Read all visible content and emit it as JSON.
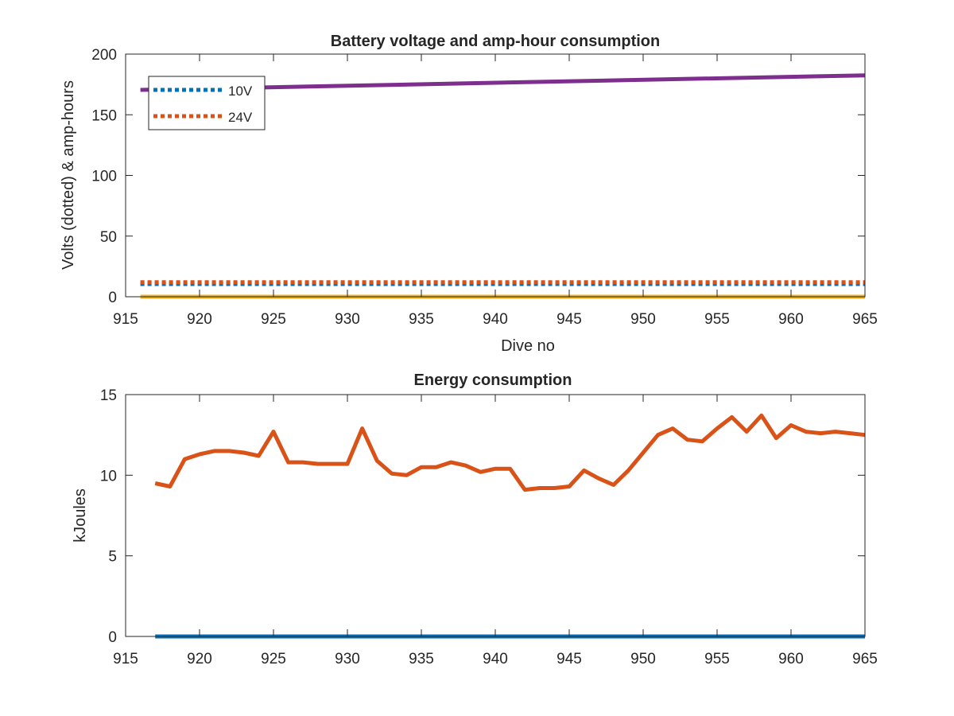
{
  "chart_data": [
    {
      "type": "line",
      "title": "Battery voltage and amp-hour consumption",
      "xlabel": "Dive no",
      "ylabel": "Volts (dotted) & amp-hours",
      "xlim": [
        915,
        965
      ],
      "ylim": [
        0,
        200
      ],
      "xticks": [
        "915",
        "920",
        "925",
        "930",
        "935",
        "940",
        "945",
        "950",
        "955",
        "960",
        "965"
      ],
      "yticks": [
        "0",
        "50",
        "100",
        "150",
        "200"
      ],
      "legend_position": "top-left",
      "grid": false,
      "series": [
        {
          "name": "10V",
          "style": "dotted",
          "color": "#0072BD",
          "x": [
            916,
            965
          ],
          "y": [
            10.5,
            10.5
          ]
        },
        {
          "name": "24V",
          "style": "dotted",
          "color": "#D95319",
          "x": [
            916,
            965
          ],
          "y": [
            12,
            12
          ]
        },
        {
          "name": "",
          "style": "solid",
          "color": "#EDB120",
          "x": [
            916,
            965
          ],
          "y": [
            0,
            0
          ]
        },
        {
          "name": "",
          "style": "solid",
          "color": "#7E2F8E",
          "x": [
            916,
            965
          ],
          "y": [
            170.5,
            182.5
          ]
        }
      ]
    },
    {
      "type": "line",
      "title": "Energy consumption",
      "xlabel": "",
      "ylabel": "kJoules",
      "xlim": [
        915,
        965
      ],
      "ylim": [
        0,
        15
      ],
      "xticks": [
        "915",
        "920",
        "925",
        "930",
        "935",
        "940",
        "945",
        "950",
        "955",
        "960",
        "965"
      ],
      "yticks": [
        "0",
        "5",
        "10",
        "15"
      ],
      "grid": false,
      "series": [
        {
          "name": "",
          "style": "solid",
          "color": "#0072BD",
          "x": [
            917,
            965
          ],
          "y": [
            0,
            0
          ]
        },
        {
          "name": "",
          "style": "solid",
          "color": "#D95319",
          "x": [
            917,
            918,
            919,
            920,
            921,
            922,
            923,
            924,
            925,
            926,
            927,
            928,
            929,
            930,
            931,
            932,
            933,
            934,
            935,
            936,
            937,
            938,
            939,
            940,
            941,
            942,
            943,
            944,
            945,
            946,
            947,
            948,
            949,
            950,
            951,
            952,
            953,
            954,
            955,
            956,
            957,
            958,
            959,
            960,
            961,
            962,
            963,
            964,
            965
          ],
          "y": [
            9.5,
            9.3,
            11.0,
            11.3,
            11.5,
            11.5,
            11.4,
            11.2,
            12.7,
            10.8,
            10.8,
            10.7,
            10.7,
            10.7,
            12.9,
            10.9,
            10.1,
            10.0,
            10.5,
            10.5,
            10.8,
            10.6,
            10.2,
            10.4,
            10.4,
            9.1,
            9.2,
            9.2,
            9.3,
            10.3,
            9.8,
            9.4,
            10.3,
            11.4,
            12.5,
            12.9,
            12.2,
            12.1,
            12.9,
            13.6,
            12.7,
            13.7,
            12.3,
            13.1,
            12.7,
            12.6,
            12.7,
            12.6,
            12.5
          ]
        }
      ]
    }
  ]
}
